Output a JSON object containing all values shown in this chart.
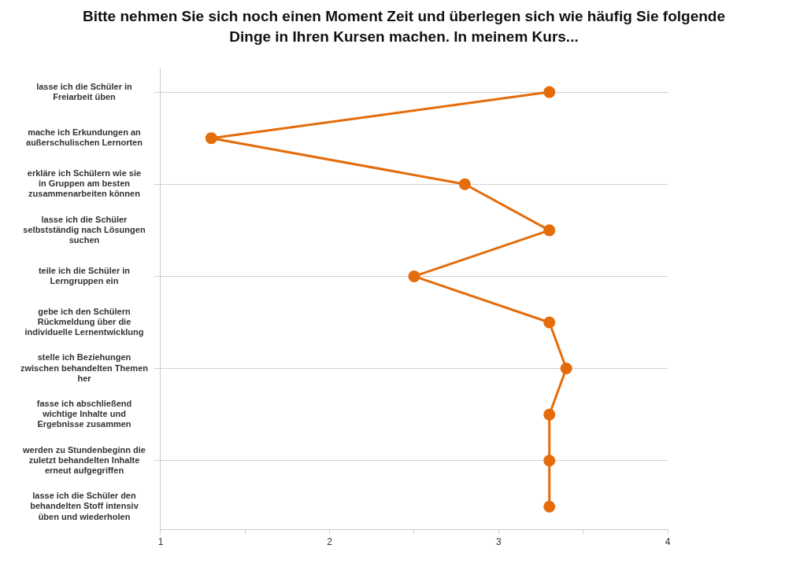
{
  "chart_data": {
    "type": "line",
    "title": "Bitte nehmen Sie sich noch einen Moment Zeit und überlegen sich wie häufig Sie folgende Dinge in Ihren Kursen machen. In meinem Kurs...",
    "orientation": "horizontal",
    "categories": [
      "lasse ich die Schüler in Freiarbeit üben",
      "mache ich Erkundungen an außerschulischen Lernorten",
      "erkläre ich Schülern wie sie in Gruppen am besten zusammenarbeiten können",
      "lasse ich die Schüler selbstständig nach Lösungen suchen",
      "teile ich die Schüler in Lerngruppen ein",
      "gebe ich den Schülern Rückmeldung über die individuelle Lernentwicklung",
      "stelle ich Beziehungen zwischen behandelten Themen her",
      "fasse ich abschließend wichtige Inhalte und Ergebnisse zusammen",
      "werden zu Stundenbeginn die zuletzt behandelten Inhalte erneut aufgegriffen",
      "lasse ich die Schüler den behandelten Stoff intensiv üben und wiederholen"
    ],
    "series": [
      {
        "color": "#e46c0a",
        "values": [
          3.3,
          1.3,
          2.8,
          3.3,
          2.5,
          3.3,
          3.4,
          3.3,
          3.3,
          3.3
        ]
      }
    ],
    "xlim": [
      1,
      4
    ],
    "xticks": [
      1,
      {
        "value": 1.5,
        "label": null
      },
      2,
      {
        "value": 2.5,
        "label": null
      },
      3,
      {
        "value": 3.5,
        "label": null
      },
      4
    ],
    "grid": "y",
    "marker": "circle",
    "legend": false
  }
}
